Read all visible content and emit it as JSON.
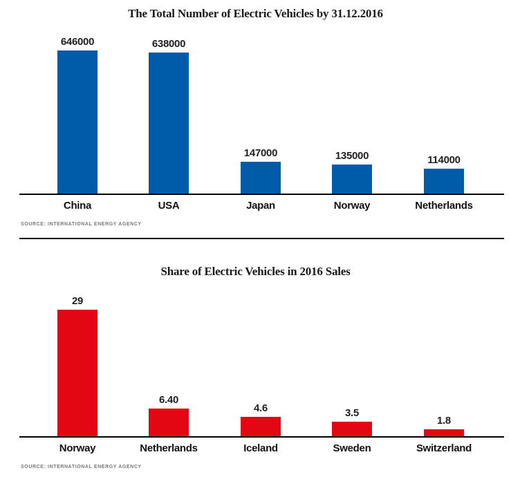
{
  "colors": {
    "blue_bar": "#005CA9",
    "red_bar": "#E30613",
    "axis": "#000000",
    "label_text": "#231f20",
    "source_text": "#77787b"
  },
  "chart_data": [
    {
      "type": "bar",
      "title": "The Total Number of Electric Vehicles by 31.12.2016",
      "categories": [
        "China",
        "USA",
        "Japan",
        "Norway",
        "Netherlands"
      ],
      "values": [
        646000,
        638000,
        147000,
        135000,
        114000
      ],
      "value_labels": [
        "646000",
        "638000",
        "147000",
        "135000",
        "114000"
      ],
      "bar_color": "#005CA9",
      "ylim": [
        0,
        700000
      ],
      "grid": false,
      "legend": "none",
      "source": "SOURCE: INTERNATIONAL ENERGY AGENCY"
    },
    {
      "type": "bar",
      "title": "Share of Electric Vehicles in 2016 Sales",
      "categories": [
        "Norway",
        "Netherlands",
        "Iceland",
        "Sweden",
        "Switzerland"
      ],
      "values": [
        29,
        6.4,
        4.6,
        3.5,
        1.8
      ],
      "value_labels": [
        "29",
        "6.40",
        "4.6",
        "3.5",
        "1.8"
      ],
      "bar_color": "#E30613",
      "ylim": [
        0,
        33
      ],
      "grid": false,
      "legend": "none",
      "source": "SOURCE: INTERNATIONAL ENERGY AGENCY"
    }
  ]
}
